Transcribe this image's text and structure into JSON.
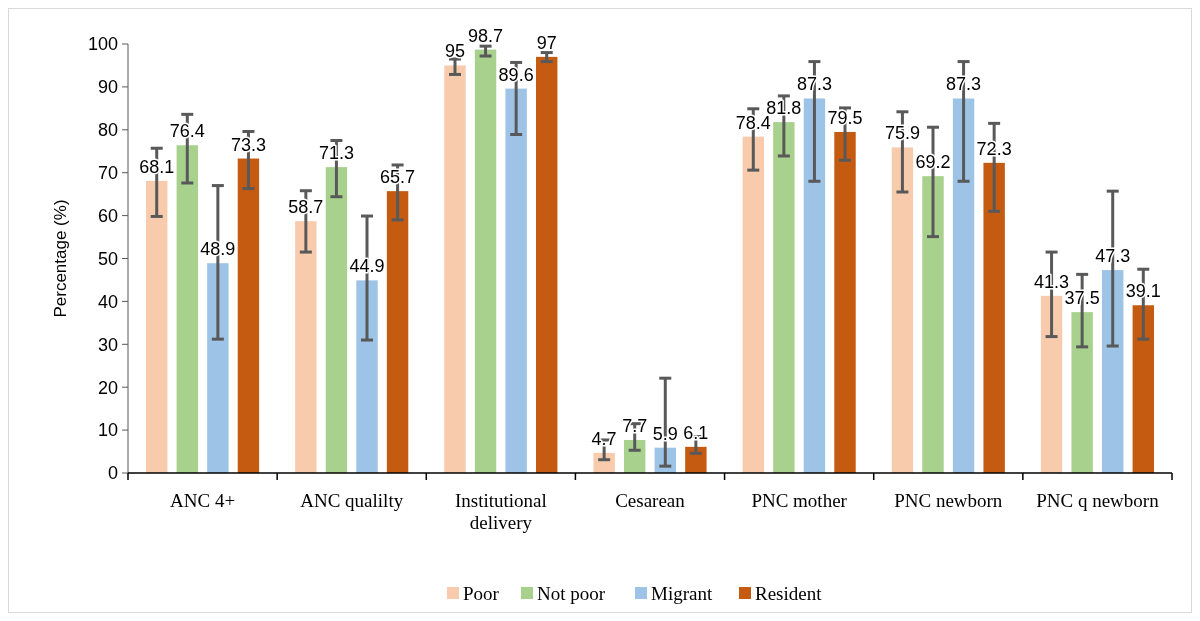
{
  "chart_data": {
    "type": "bar",
    "ylabel": "Percentage (%)",
    "categories": [
      "ANC 4+",
      "ANC qualilty",
      "Institutional delivery",
      "Cesarean",
      "PNC mother",
      "PNC newborn",
      "PNC q newborn"
    ],
    "series": [
      {
        "name": "Poor",
        "color": "#f8cbad",
        "values": [
          68.1,
          58.7,
          95,
          4.7,
          78.4,
          75.9,
          41.3
        ],
        "errors": [
          [
            59.8,
            75.7
          ],
          [
            51.5,
            65.8
          ],
          [
            92.9,
            96.5
          ],
          [
            3.1,
            7.7
          ],
          [
            70.6,
            84.9
          ],
          [
            65.5,
            84.2
          ],
          [
            31.8,
            51.5
          ]
        ]
      },
      {
        "name": "Not poor",
        "color": "#a9d18e",
        "values": [
          76.4,
          71.3,
          98.7,
          7.7,
          81.8,
          69.2,
          37.5
        ],
        "errors": [
          [
            67.6,
            83.6
          ],
          [
            64.4,
            77.5
          ],
          [
            97.2,
            99.5
          ],
          [
            5.3,
            11.5
          ],
          [
            73.9,
            87.9
          ],
          [
            55.1,
            80.6
          ],
          [
            29.4,
            46.3
          ]
        ]
      },
      {
        "name": "Migrant",
        "color": "#9dc3e6",
        "values": [
          48.9,
          44.9,
          89.6,
          5.9,
          87.3,
          87.3,
          47.3
        ],
        "errors": [
          [
            31.2,
            67.0
          ],
          [
            31.0,
            59.9
          ],
          [
            78.9,
            95.7
          ],
          [
            1.6,
            22.1
          ],
          [
            68.0,
            95.9
          ],
          [
            68.0,
            95.9
          ],
          [
            29.6,
            65.7
          ]
        ]
      },
      {
        "name": "Resident",
        "color": "#c55a11",
        "values": [
          73.3,
          65.7,
          97,
          6.1,
          79.5,
          72.3,
          39.1
        ],
        "errors": [
          [
            66.3,
            79.6
          ],
          [
            59.0,
            71.8
          ],
          [
            95.9,
            98.0
          ],
          [
            4.6,
            8.5
          ],
          [
            72.9,
            85.1
          ],
          [
            61.0,
            81.5
          ],
          [
            31.2,
            47.5
          ]
        ]
      }
    ],
    "ylim": [
      0,
      100
    ],
    "yticks": [
      0,
      10,
      20,
      30,
      40,
      50,
      60,
      70,
      80,
      90,
      100
    ],
    "data_labels": true,
    "legend": "bottom",
    "grid": false
  }
}
